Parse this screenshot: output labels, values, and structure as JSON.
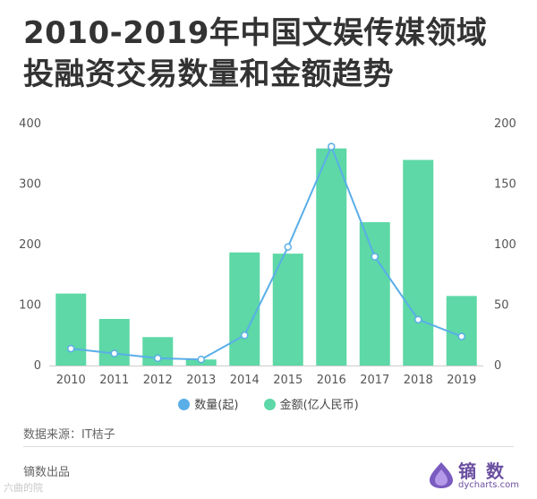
{
  "title": {
    "line1": "2010-2019年中国文娱传媒领域",
    "line2": "投融资交易数量和金额趋势"
  },
  "chart_data": {
    "type": "bar",
    "categories": [
      "2010",
      "2011",
      "2012",
      "2013",
      "2014",
      "2015",
      "2016",
      "2017",
      "2018",
      "2019"
    ],
    "series": [
      {
        "name": "金额(亿人民币)",
        "type": "bar",
        "axis": "left",
        "color": "#5dd8a6",
        "values": [
          119,
          77,
          47,
          10,
          187,
          185,
          359,
          237,
          340,
          115
        ]
      },
      {
        "name": "数量(起)",
        "type": "line",
        "axis": "right",
        "color": "#5aaee8",
        "values": [
          14,
          10,
          6,
          5,
          25,
          98,
          181,
          90,
          38,
          24
        ]
      }
    ],
    "left_axis": {
      "ylim": [
        0,
        400
      ],
      "ticks": [
        "0",
        "100",
        "200",
        "300",
        "400"
      ]
    },
    "right_axis": {
      "ylim": [
        0,
        200
      ],
      "ticks": [
        "0",
        "50",
        "100",
        "150",
        "200"
      ]
    },
    "grid": false,
    "legend_position": "bottom"
  },
  "legend": [
    {
      "label": "数量(起)",
      "color": "#5aaee8"
    },
    {
      "label": "金额(亿人民币)",
      "color": "#5dd8a6"
    }
  ],
  "source": "数据来源：IT桔子",
  "footer": {
    "left": "镝数出品",
    "logo_text": "镝 数",
    "logo_sub": "dycharts.com",
    "watermark": "六曲的院"
  }
}
